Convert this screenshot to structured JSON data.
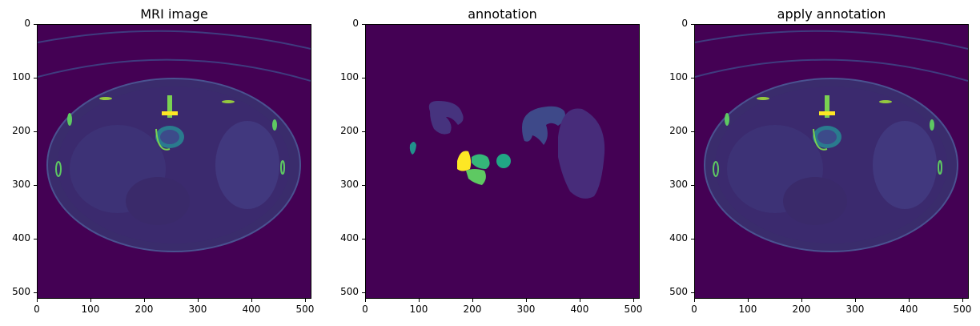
{
  "panels": [
    {
      "title": "MRI image"
    },
    {
      "title": "annotation"
    },
    {
      "title": "apply annotation"
    }
  ],
  "axes": {
    "y_ticks": [
      "0",
      "100",
      "200",
      "300",
      "400",
      "500"
    ],
    "x_ticks": [
      "0",
      "100",
      "200",
      "300",
      "400",
      "500"
    ]
  },
  "colors": {
    "background": "#440154",
    "tissue": "#3b2a6e",
    "organ_blue": "#3e4989",
    "organ_purple": "#472c7a",
    "teal": "#21918c",
    "green": "#5ec962",
    "seagreen": "#35b779",
    "yellow": "#fde725"
  }
}
